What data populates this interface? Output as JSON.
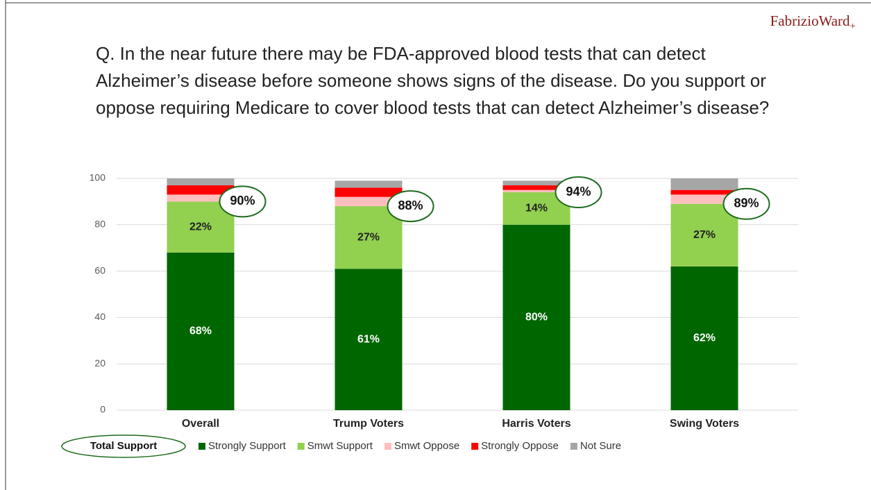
{
  "chart_data": {
    "type": "stacked_bar",
    "title": "Q. In the near future there may be FDA-approved blood tests that can detect Alzheimer’s disease before someone shows signs of the disease. Do you support or oppose requiring Medicare to cover blood tests that can detect Alzheimer’s disease?",
    "brand": "FabrizioWard",
    "brand_mark": "+",
    "categories": [
      "Overall",
      "Trump Voters",
      "Harris Voters",
      "Swing Voters"
    ],
    "series": [
      {
        "name": "Strongly Support",
        "color": "#006600",
        "values": [
          68,
          61,
          80,
          62
        ],
        "value_labels": [
          "68%",
          "61%",
          "80%",
          "62%"
        ]
      },
      {
        "name": "Smwt Support",
        "color": "#92d050",
        "values": [
          22,
          27,
          14,
          27
        ],
        "value_labels": [
          "22%",
          "27%",
          "14%",
          "27%"
        ]
      },
      {
        "name": "Smwt Oppose",
        "color": "#ffbfbf",
        "values": [
          3,
          4,
          1,
          4
        ]
      },
      {
        "name": "Strongly Oppose",
        "color": "#ff0000",
        "values": [
          4,
          4,
          2,
          2
        ]
      },
      {
        "name": "Not Sure",
        "color": "#a6a6a6",
        "values": [
          3,
          3,
          2,
          5
        ]
      }
    ],
    "total_support": {
      "name": "Total Support",
      "values": [
        90,
        88,
        94,
        89
      ],
      "value_labels": [
        "90%",
        "88%",
        "94%",
        "89%"
      ]
    },
    "ylim": [
      0,
      100
    ],
    "yticks": [
      0,
      20,
      40,
      60,
      80,
      100
    ],
    "grid": true
  }
}
